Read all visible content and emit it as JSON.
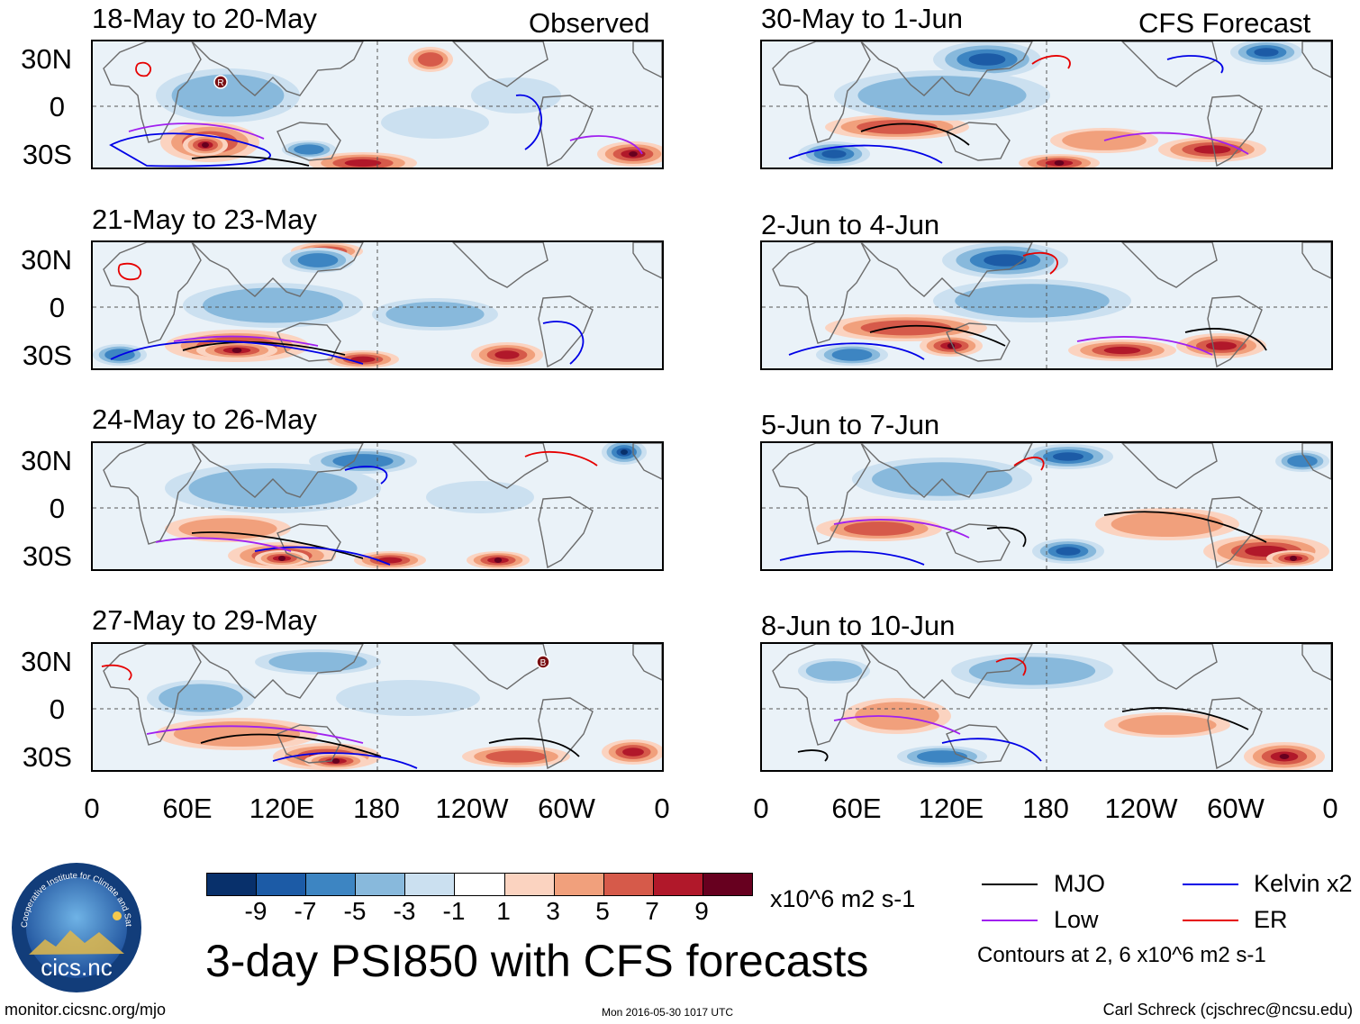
{
  "columns": {
    "left_tag": "Observed",
    "right_tag": "CFS Forecast"
  },
  "panels": {
    "left": [
      {
        "title": "18-May to 20-May"
      },
      {
        "title": "21-May to 23-May"
      },
      {
        "title": "24-May to 26-May"
      },
      {
        "title": "27-May to 29-May"
      }
    ],
    "right": [
      {
        "title": "30-May to 1-Jun"
      },
      {
        "title": "2-Jun to 4-Jun"
      },
      {
        "title": "5-Jun to 7-Jun"
      },
      {
        "title": "8-Jun to 10-Jun"
      }
    ]
  },
  "lat_labels": [
    "30N",
    "0",
    "30S"
  ],
  "lon_labels": [
    "0",
    "60E",
    "120E",
    "180",
    "120W",
    "60W",
    "0"
  ],
  "markers": [
    {
      "panel": "left-0",
      "label": "R"
    },
    {
      "panel": "left-3",
      "label": "B"
    }
  ],
  "colorbar": {
    "colors": [
      "#08306b",
      "#1c5ba6",
      "#3d85c2",
      "#88b9dc",
      "#cbe0f0",
      "#ffffff",
      "#fbd3c0",
      "#f1a07c",
      "#d65a4a",
      "#b1182a",
      "#67001f"
    ],
    "ticks": [
      "-9",
      "-7",
      "-5",
      "-3",
      "-1",
      "1",
      "3",
      "5",
      "7",
      "9"
    ],
    "units": "x10^6 m2 s-1"
  },
  "legend": {
    "items": [
      {
        "label": "MJO",
        "color": "#000000"
      },
      {
        "label": "Kelvin x2",
        "color": "#0000e6"
      },
      {
        "label": "Low",
        "color": "#a020f0"
      },
      {
        "label": "ER",
        "color": "#e60000"
      }
    ],
    "contour_note": "Contours at 2, 6 x10^6 m2 s-1"
  },
  "main_title": "3-day PSI850 with CFS forecasts",
  "footer": {
    "site": "monitor.cicsnc.org/mjo",
    "timestamp": "Mon 2016-05-30 1017 UTC",
    "author": "Carl Schreck (cjschrec@ncsu.edu)"
  },
  "logo": {
    "ring_text": "Cooperative Institute for Climate and Satellites",
    "name": "cics.nc"
  }
}
